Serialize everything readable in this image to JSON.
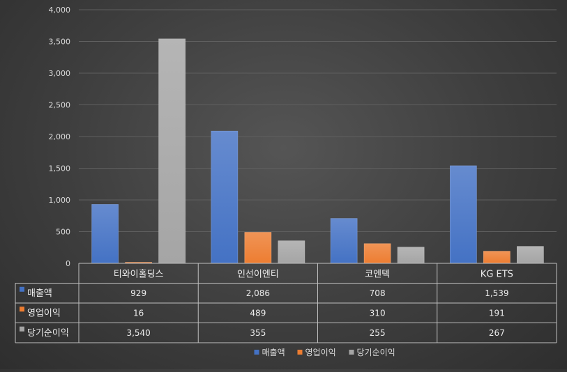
{
  "chart_data": {
    "type": "bar",
    "title": "",
    "xlabel": "",
    "ylabel": "",
    "categories": [
      "티와이홀딩스",
      "인선이엔티",
      "코엔텍",
      "KG ETS"
    ],
    "series": [
      {
        "name": "매출액",
        "values": [
          929,
          2086,
          708,
          1539
        ],
        "labels": [
          "929",
          "2,086",
          "708",
          "1,539"
        ],
        "color": "#4472c4"
      },
      {
        "name": "영업이익",
        "values": [
          16,
          489,
          310,
          191
        ],
        "labels": [
          "16",
          "489",
          "310",
          "191"
        ],
        "color": "#ed7d31"
      },
      {
        "name": "당기순이익",
        "values": [
          3540,
          355,
          255,
          267
        ],
        "labels": [
          "3,540",
          "355",
          "255",
          "267"
        ],
        "color": "#a5a5a5"
      }
    ],
    "ylim": [
      0,
      4000
    ],
    "yticks": [
      0,
      500,
      1000,
      1500,
      2000,
      2500,
      3000,
      3500,
      4000
    ],
    "ytick_labels": [
      "0",
      "500",
      "1,000",
      "1,500",
      "2,000",
      "2,500",
      "3,000",
      "3,500",
      "4,000"
    ],
    "grid": true,
    "legend": "bottom",
    "data_table": true
  }
}
